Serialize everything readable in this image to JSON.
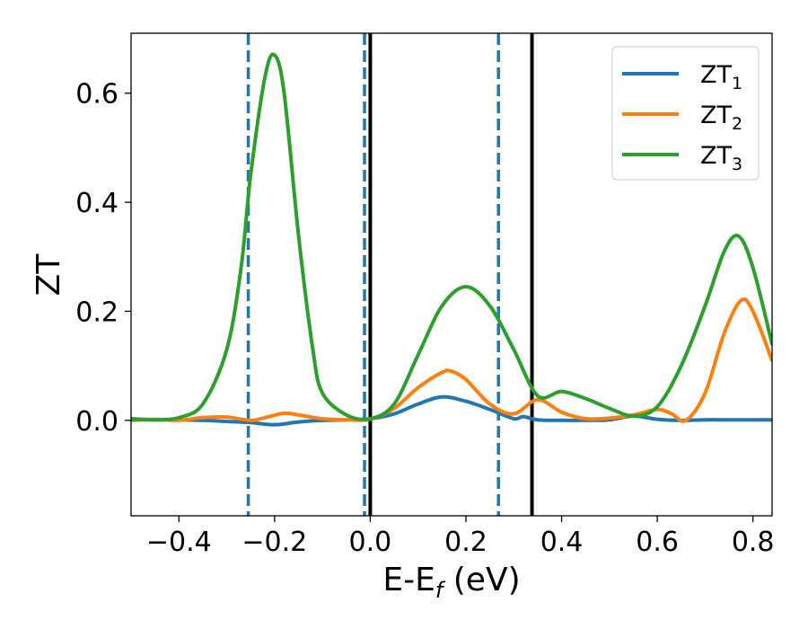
{
  "chart_data": {
    "type": "line",
    "title": "",
    "xlabel": "E-E",
    "xlabel_sub": "f",
    "xlabel_unit": " (eV)",
    "ylabel": "ZT",
    "xlim": [
      -0.5,
      0.84
    ],
    "ylim": [
      -0.175,
      0.71
    ],
    "x_ticks": [
      -0.4,
      -0.2,
      0.0,
      0.2,
      0.4,
      0.6,
      0.8
    ],
    "x_tick_labels": [
      "−0.4",
      "−0.2",
      "0.0",
      "0.2",
      "0.4",
      "0.6",
      "0.8"
    ],
    "y_ticks": [
      0.0,
      0.2,
      0.4,
      0.6
    ],
    "y_tick_labels": [
      "0.0",
      "0.2",
      "0.4",
      "0.6"
    ],
    "grid": false,
    "legend_position": "top-right",
    "vlines": [
      {
        "x": -0.255,
        "style": "dashed",
        "color": "#1f77b4"
      },
      {
        "x": -0.012,
        "style": "dashed",
        "color": "#1f77b4"
      },
      {
        "x": 0.0,
        "style": "solid",
        "color": "#000000"
      },
      {
        "x": 0.268,
        "style": "dashed",
        "color": "#1f77b4"
      },
      {
        "x": 0.338,
        "style": "solid",
        "color": "#000000"
      }
    ],
    "series": [
      {
        "name": "ZT",
        "name_sub": "1",
        "color": "#1f77b4",
        "x": [
          -0.5,
          -0.45,
          -0.4,
          -0.35,
          -0.3,
          -0.25,
          -0.2,
          -0.15,
          -0.1,
          -0.05,
          0.0,
          0.05,
          0.1,
          0.15,
          0.2,
          0.25,
          0.3,
          0.32,
          0.35,
          0.4,
          0.45,
          0.5,
          0.55,
          0.6,
          0.65,
          0.7,
          0.75,
          0.8,
          0.84
        ],
        "y": [
          0.003,
          0.001,
          0.001,
          0.0,
          -0.002,
          -0.004,
          -0.008,
          -0.003,
          0.0,
          0.001,
          0.003,
          0.012,
          0.03,
          0.043,
          0.035,
          0.02,
          0.003,
          0.007,
          0.001,
          0.0,
          0.0,
          0.001,
          0.008,
          0.002,
          0.0,
          0.001,
          0.001,
          0.001,
          0.001
        ]
      },
      {
        "name": "ZT",
        "name_sub": "2",
        "color": "#ff7f0e",
        "x": [
          -0.5,
          -0.45,
          -0.4,
          -0.35,
          -0.3,
          -0.25,
          -0.22,
          -0.18,
          -0.15,
          -0.1,
          -0.05,
          0.0,
          0.05,
          0.1,
          0.15,
          0.17,
          0.2,
          0.25,
          0.3,
          0.35,
          0.4,
          0.45,
          0.5,
          0.55,
          0.6,
          0.63,
          0.66,
          0.7,
          0.74,
          0.775,
          0.8,
          0.84
        ],
        "y": [
          0.0,
          0.002,
          0.0,
          0.005,
          0.006,
          0.0,
          0.005,
          0.013,
          0.01,
          0.003,
          0.001,
          0.002,
          0.022,
          0.06,
          0.088,
          0.09,
          0.075,
          0.03,
          0.012,
          0.038,
          0.015,
          0.003,
          0.004,
          0.01,
          0.02,
          0.012,
          0.0,
          0.05,
          0.16,
          0.22,
          0.2,
          0.11
        ]
      },
      {
        "name": "ZT",
        "name_sub": "3",
        "color": "#2ca02c",
        "x": [
          -0.5,
          -0.45,
          -0.4,
          -0.35,
          -0.3,
          -0.27,
          -0.25,
          -0.22,
          -0.2,
          -0.18,
          -0.15,
          -0.12,
          -0.1,
          -0.05,
          0.0,
          0.05,
          0.1,
          0.15,
          0.2,
          0.25,
          0.3,
          0.35,
          0.4,
          0.45,
          0.5,
          0.55,
          0.6,
          0.65,
          0.7,
          0.74,
          0.77,
          0.8,
          0.84
        ],
        "y": [
          0.002,
          0.001,
          0.005,
          0.03,
          0.13,
          0.28,
          0.45,
          0.63,
          0.67,
          0.6,
          0.34,
          0.13,
          0.05,
          0.01,
          0.003,
          0.03,
          0.12,
          0.21,
          0.245,
          0.21,
          0.13,
          0.045,
          0.053,
          0.04,
          0.022,
          0.008,
          0.025,
          0.1,
          0.21,
          0.31,
          0.338,
          0.28,
          0.14
        ]
      }
    ]
  }
}
